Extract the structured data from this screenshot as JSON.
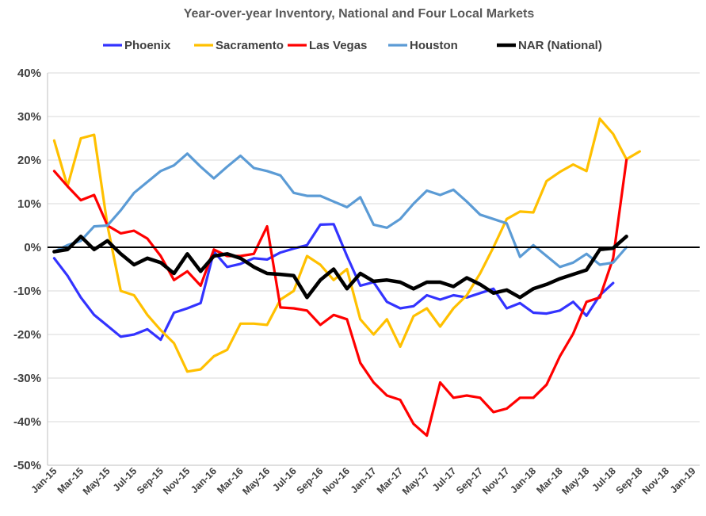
{
  "chart_data": {
    "type": "line",
    "title": "Year-over-year Inventory, National and Four Local Markets",
    "xlabel": "",
    "ylabel": "",
    "ylim": [
      -50,
      40
    ],
    "yticks": [
      40,
      30,
      20,
      10,
      0,
      -10,
      -20,
      -30,
      -40,
      -50
    ],
    "ytick_labels": [
      "40%",
      "30%",
      "20%",
      "10%",
      "0%",
      "-10%",
      "-20%",
      "-30%",
      "-40%",
      "-50%"
    ],
    "xtick_labels": [
      "Jan-15",
      "Mar-15",
      "May-15",
      "Jul-15",
      "Sep-15",
      "Nov-15",
      "Jan-16",
      "Mar-16",
      "May-16",
      "Jul-16",
      "Sep-16",
      "Nov-16",
      "Jan-17",
      "Mar-17",
      "May-17",
      "Jul-17",
      "Sep-17",
      "Nov-17",
      "Jan-18",
      "Mar-18",
      "May-18",
      "Jul-18",
      "Sep-18",
      "Nov-18",
      "Jan-19"
    ],
    "x_month_count": 49,
    "grid": "horizontal",
    "legend_position": "top",
    "series": [
      {
        "name": "Phoenix",
        "color": "#3333ff",
        "values": [
          -2.5,
          -6.5,
          -11.5,
          -15.5,
          -18,
          -20.5,
          -20,
          -18.8,
          -21.2,
          -15,
          -14,
          -12.8,
          -1,
          -4.5,
          -3.8,
          -2.5,
          -2.8,
          -1.2,
          -0.3,
          0.5,
          5.2,
          5.3,
          -2,
          -8.8,
          -8,
          -12.5,
          -14,
          -13.5,
          -11,
          -12,
          -11,
          -11.5,
          -10.5,
          -9.5,
          -14,
          -12.8,
          -15,
          -15.2,
          -14.5,
          -12.5,
          -15.7,
          -11,
          -8.2
        ]
      },
      {
        "name": "Sacramento",
        "color": "#ffc000",
        "values": [
          24.5,
          14,
          25,
          25.8,
          5,
          -10,
          -11,
          -15.5,
          -19,
          -22,
          -28.5,
          -28,
          -25,
          -23.5,
          -17.5,
          -17.5,
          -17.8,
          -12,
          -10,
          -2,
          -4,
          -7.5,
          -5,
          -16.5,
          -20,
          -16.5,
          -22.8,
          -15.8,
          -14,
          -18.2,
          -14,
          -11,
          -6,
          0,
          6.5,
          8.2,
          8,
          15.2,
          17.3,
          19,
          17.5,
          29.5,
          26,
          20.2,
          22
        ]
      },
      {
        "name": "Las Vegas",
        "color": "#ff0000",
        "values": [
          17.5,
          14,
          10.8,
          12,
          5,
          3.2,
          3.8,
          2,
          -2,
          -7.5,
          -5.5,
          -8.8,
          -0.5,
          -2,
          -2,
          -1.5,
          4.8,
          -13.8,
          -14,
          -14.5,
          -17.8,
          -15.5,
          -16.5,
          -26.5,
          -31,
          -34,
          -35,
          -40.5,
          -43.2,
          -31,
          -34.5,
          -34,
          -34.5,
          -37.8,
          -37,
          -34.5,
          -34.5,
          -31.5,
          -25,
          -19.8,
          -12.5,
          -11.5,
          -2.5,
          20
        ]
      },
      {
        "name": "Houston",
        "color": "#5b9bd5",
        "values": [
          -1,
          0.5,
          1.5,
          4.8,
          5,
          8.5,
          12.5,
          15,
          17.5,
          18.8,
          21.5,
          18.5,
          15.8,
          18.5,
          21,
          18.2,
          17.5,
          16.5,
          12.5,
          11.8,
          11.8,
          10.5,
          9.2,
          11.5,
          5.2,
          4.5,
          6.5,
          10,
          13,
          12,
          13.2,
          10.5,
          7.5,
          6.5,
          5.5,
          -2.2,
          0.5,
          -2,
          -4.5,
          -3.5,
          -1.5,
          -4,
          -3.5,
          0
        ]
      },
      {
        "name": "NAR (National)",
        "color": "#000000",
        "values": [
          -1,
          -0.5,
          2.5,
          -0.5,
          1.5,
          -1.5,
          -4,
          -2.5,
          -3.5,
          -6,
          -1.5,
          -5.5,
          -2,
          -1.5,
          -2.5,
          -4.5,
          -6,
          -6.2,
          -6.5,
          -11.5,
          -7.5,
          -5,
          -9.5,
          -6,
          -7.8,
          -7.5,
          -8,
          -9.5,
          -8,
          -8,
          -9,
          -7,
          -8.5,
          -10.5,
          -9.8,
          -11.5,
          -9.5,
          -8.5,
          -7.2,
          -6.2,
          -5.2,
          -0.5,
          -0.2,
          2.5
        ]
      }
    ]
  }
}
